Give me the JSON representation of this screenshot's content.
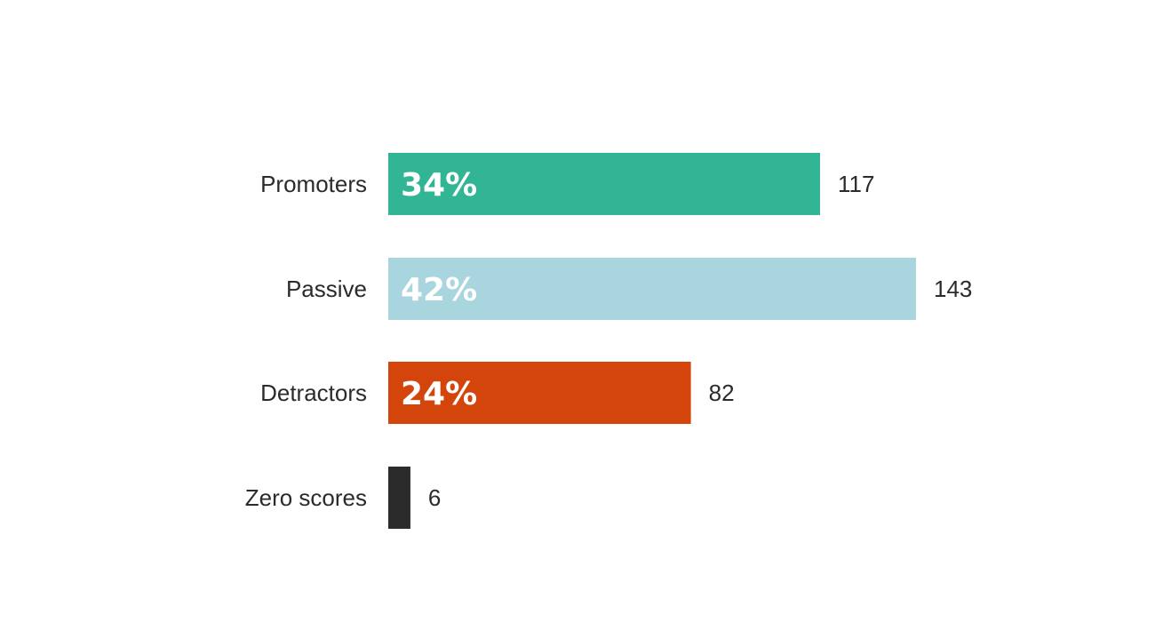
{
  "chart_data": {
    "type": "bar",
    "orientation": "horizontal",
    "categories": [
      "Promoters",
      "Passive",
      "Detractors",
      "Zero scores"
    ],
    "values": [
      117,
      143,
      82,
      6
    ],
    "percent_labels": [
      "34%",
      "42%",
      "24%",
      ""
    ],
    "colors": [
      "#32b594",
      "#a8d5de",
      "#d4450c",
      "#2b2b2b"
    ],
    "title": "",
    "xlabel": "",
    "ylabel": "",
    "grid": false,
    "legend": "none"
  }
}
